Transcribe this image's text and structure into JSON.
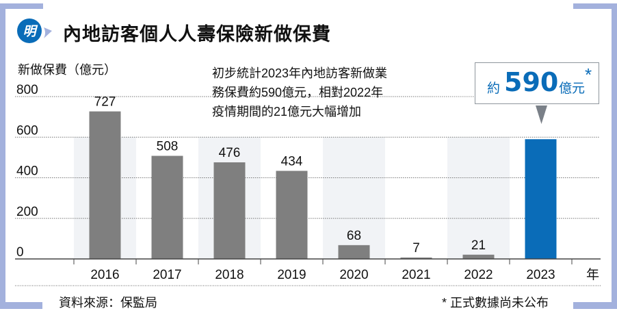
{
  "header": {
    "logo_text": "明",
    "title": "內地訪客個人人壽保險新做保費"
  },
  "annotation": {
    "lines": [
      "初步統計2023年內地訪客新做業",
      "務保費約590億元，相對2022年",
      "疫情期間的21億元大幅增加"
    ]
  },
  "callout": {
    "prefix": "約",
    "value": "590",
    "suffix": "億元",
    "star": "*"
  },
  "footer": {
    "source": "資料來源：保監局",
    "footnote": "* 正式數據尚未公布"
  },
  "colors": {
    "bar": "#7f7f7f",
    "highlight": "#0a6cb8",
    "frame": "#a3b1dd",
    "band": "#f1f3f6"
  },
  "chart_data": {
    "type": "bar",
    "title": "內地訪客個人人壽保險新做保費",
    "ylabel": "新做保費（億元）",
    "xlabel": "年",
    "categories": [
      "2016",
      "2017",
      "2018",
      "2019",
      "2020",
      "2021",
      "2022",
      "2023"
    ],
    "values": [
      727,
      508,
      476,
      434,
      68,
      7,
      21,
      590
    ],
    "value_labels": [
      "727",
      "508",
      "476",
      "434",
      "68",
      "7",
      "21",
      ""
    ],
    "yticks": [
      "0",
      "200",
      "400",
      "600",
      "800"
    ],
    "ylim": [
      0,
      800
    ],
    "grid": true,
    "highlight_index": 7
  }
}
